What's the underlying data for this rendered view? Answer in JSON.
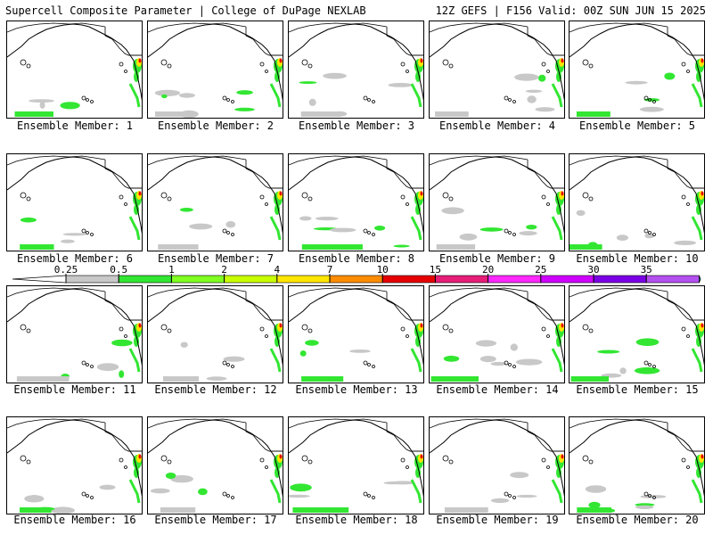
{
  "header": {
    "title": "Supercell Composite Parameter | College of DuPage NEXLAB",
    "run_info": "12Z GEFS | F156 Valid: 00Z SUN JUN 15 2025"
  },
  "member_label_prefix": "Ensemble Member: ",
  "members": [
    {
      "number": "1"
    },
    {
      "number": "2"
    },
    {
      "number": "3"
    },
    {
      "number": "4"
    },
    {
      "number": "5"
    },
    {
      "number": "6"
    },
    {
      "number": "7"
    },
    {
      "number": "8"
    },
    {
      "number": "9"
    },
    {
      "number": "10"
    },
    {
      "number": "11"
    },
    {
      "number": "12"
    },
    {
      "number": "13"
    },
    {
      "number": "14"
    },
    {
      "number": "15"
    },
    {
      "number": "16"
    },
    {
      "number": "17"
    },
    {
      "number": "18"
    },
    {
      "number": "19"
    },
    {
      "number": "20"
    }
  ],
  "colorbar": {
    "ticks": [
      "0.25",
      "0.5",
      "1",
      "2",
      "4",
      "7",
      "10",
      "15",
      "20",
      "25",
      "30",
      "35"
    ],
    "colors": [
      "#c8c8c8",
      "#32e632",
      "#80ff20",
      "#c8ff00",
      "#ffe600",
      "#ff8c00",
      "#e60000",
      "#e61e78",
      "#ff28ff",
      "#d000ff",
      "#7a00e6",
      "#b450f0",
      "#28e6ff"
    ]
  },
  "map_colors": {
    "coast": "#000000",
    "low": "#c8c8c8",
    "green": "#32e632",
    "yellow": "#ffe600",
    "orange": "#ff8c00",
    "red": "#e60000"
  }
}
